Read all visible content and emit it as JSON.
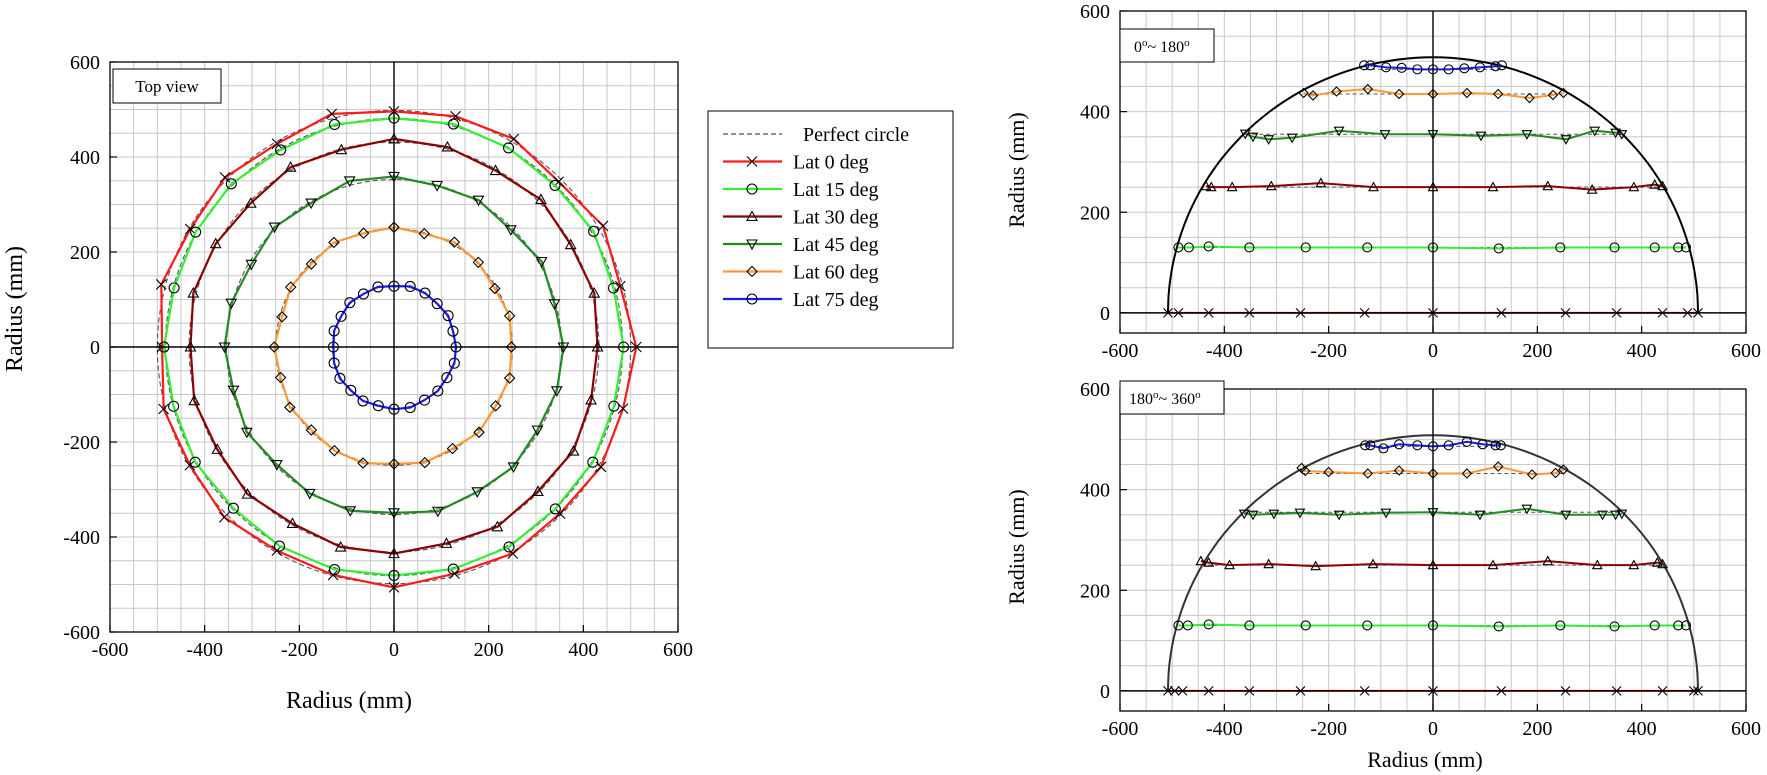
{
  "chart_data": [
    {
      "type": "line",
      "panel": "top-view",
      "title": "",
      "annotation": "Top view",
      "xlabel": "Radius (mm)",
      "ylabel": "Radius (mm)",
      "xlim": [
        -600,
        600
      ],
      "ylim": [
        -600,
        600
      ],
      "ticks": [
        -600,
        -400,
        -200,
        0,
        200,
        400,
        600
      ],
      "grid": true,
      "legend_position": "right",
      "reference": {
        "name": "Perfect circle",
        "style": "dashed",
        "color": "#555555"
      },
      "series": [
        {
          "name": "Lat 0 deg",
          "color": "#ff1a1a",
          "marker": "x",
          "radius": 500,
          "ref_radius": 500,
          "points": 24,
          "deviations": [
            12,
            -5,
            10,
            -8,
            6,
            3,
            -4,
            8,
            -6,
            5,
            -3,
            9,
            -10,
            4,
            -2,
            7,
            -5,
            -3,
            6,
            -6,
            2,
            -4,
            5,
            1
          ]
        },
        {
          "name": "Lat 15 deg",
          "color": "#33ee33",
          "marker": "circle",
          "radius": 483,
          "ref_radius": 483,
          "points": 24,
          "deviations": [
            2,
            -3,
            4,
            -2,
            1,
            3,
            -1,
            2,
            -4,
            3,
            1,
            -2,
            3,
            -1,
            2,
            -3,
            1,
            2,
            -2,
            1,
            3,
            -1,
            2,
            -2
          ]
        },
        {
          "name": "Lat 30 deg",
          "color": "#8b0000",
          "marker": "triangle",
          "radius": 433,
          "ref_radius": 433,
          "points": 24,
          "deviations": [
            -3,
            5,
            -2,
            6,
            -4,
            3,
            5,
            -3,
            4,
            -5,
            2,
            6,
            -3,
            4,
            -2,
            5,
            -4,
            3,
            2,
            -5,
            4,
            -3,
            5,
            -2
          ]
        },
        {
          "name": "Lat 45 deg",
          "color": "#228b22",
          "marker": "tri-down",
          "radius": 354,
          "ref_radius": 354,
          "points": 24,
          "deviations": [
            4,
            -3,
            6,
            -5,
            3,
            -2,
            5,
            8,
            -4,
            3,
            -6,
            2,
            4,
            -3,
            5,
            -4,
            2,
            3,
            -5,
            4,
            -2,
            3,
            -4,
            2
          ]
        },
        {
          "name": "Lat 60 deg",
          "color": "#ff9933",
          "marker": "diamond",
          "radius": 250,
          "ref_radius": 250,
          "points": 24,
          "deviations": [
            -2,
            3,
            -4,
            2,
            5,
            -3,
            2,
            -2,
            4,
            -3,
            2,
            -5,
            3,
            -2,
            4,
            -3,
            2,
            3,
            -4,
            2,
            -3,
            4,
            -2,
            3
          ]
        },
        {
          "name": "Lat 75 deg",
          "color": "#1a1aee",
          "marker": "circle",
          "radius": 130,
          "ref_radius": 130,
          "points": 24,
          "deviations": [
            1,
            -1,
            2,
            -1,
            1,
            2,
            -2,
            1,
            -1,
            2,
            -1,
            1,
            -2,
            1,
            2,
            -1,
            1,
            -2,
            1,
            2,
            -1,
            1,
            -1,
            2
          ]
        }
      ]
    },
    {
      "type": "line",
      "panel": "side-view-upper",
      "annotation": "0°~ 180°",
      "annotation_parts": {
        "a": "0",
        "b": "o",
        "c": "~ 180",
        "d": "o"
      },
      "xlabel": "",
      "ylabel": "Radius (mm)",
      "xlim": [
        -600,
        600
      ],
      "ylim": [
        -40,
        600
      ],
      "xticks": [
        -600,
        -400,
        -200,
        0,
        200,
        400,
        600
      ],
      "yticks": [
        0,
        200,
        400,
        600
      ],
      "grid": true,
      "sphere_radius": 508,
      "series": [
        {
          "name": "Lat 0 deg",
          "color": "#ff1a1a",
          "marker": "x",
          "x": [
            -508,
            -488,
            -430,
            -352,
            -254,
            -131,
            0,
            131,
            254,
            352,
            440,
            488,
            508
          ],
          "y": [
            0,
            0,
            0,
            0,
            0,
            0,
            0,
            0,
            0,
            0,
            0,
            0,
            0
          ]
        },
        {
          "name": "Lat 15 deg",
          "color": "#33ee33",
          "marker": "circle",
          "x": [
            -488,
            -468,
            -430,
            -352,
            -244,
            -126,
            0,
            126,
            244,
            348,
            425,
            470,
            485
          ],
          "y": [
            130,
            130,
            132,
            130,
            130,
            130,
            130,
            128,
            130,
            130,
            130,
            130,
            130
          ]
        },
        {
          "name": "Lat 30 deg",
          "color": "#8b0000",
          "marker": "triangle",
          "x": [
            -435,
            -425,
            -385,
            -310,
            -215,
            -114,
            0,
            115,
            220,
            305,
            385,
            425,
            440
          ],
          "y": [
            252,
            250,
            250,
            252,
            258,
            250,
            250,
            250,
            252,
            245,
            250,
            255,
            252
          ]
        },
        {
          "name": "Lat 45 deg",
          "color": "#228b22",
          "marker": "tri-down",
          "x": [
            -360,
            -345,
            -315,
            -270,
            -180,
            -92,
            0,
            92,
            180,
            255,
            310,
            350,
            362
          ],
          "y": [
            356,
            350,
            345,
            348,
            362,
            355,
            355,
            352,
            355,
            345,
            362,
            358,
            355
          ]
        },
        {
          "name": "Lat 60 deg",
          "color": "#ff9933",
          "marker": "diamond",
          "x": [
            -248,
            -230,
            -185,
            -125,
            -65,
            0,
            65,
            125,
            185,
            230,
            250
          ],
          "y": [
            437,
            432,
            440,
            445,
            435,
            435,
            437,
            435,
            427,
            433,
            437
          ]
        },
        {
          "name": "Lat 75 deg",
          "color": "#1a1aee",
          "marker": "circle",
          "x": [
            -132,
            -120,
            -90,
            -60,
            -30,
            0,
            30,
            60,
            90,
            120,
            132
          ],
          "y": [
            492,
            492,
            488,
            487,
            484,
            484,
            484,
            486,
            488,
            490,
            492
          ]
        }
      ]
    },
    {
      "type": "line",
      "panel": "side-view-lower",
      "annotation": "180°~ 360°",
      "annotation_parts": {
        "a": "180",
        "b": "o",
        "c": "~ 360",
        "d": "o"
      },
      "xlabel": "Radius (mm)",
      "ylabel": "Radius (mm)",
      "xlim": [
        -600,
        600
      ],
      "ylim": [
        -40,
        600
      ],
      "xticks": [
        -600,
        -400,
        -200,
        0,
        200,
        400,
        600
      ],
      "yticks": [
        0,
        200,
        400,
        600
      ],
      "grid": true,
      "sphere_radius": 508,
      "series": [
        {
          "name": "Lat 0 deg",
          "color": "#ff1a1a",
          "marker": "x",
          "x": [
            -508,
            -495,
            -480,
            -430,
            -352,
            -254,
            -131,
            0,
            131,
            254,
            352,
            440,
            500,
            508
          ],
          "y": [
            0,
            0,
            0,
            0,
            0,
            0,
            0,
            0,
            0,
            0,
            0,
            0,
            0,
            0
          ]
        },
        {
          "name": "Lat 15 deg",
          "color": "#33ee33",
          "marker": "circle",
          "x": [
            -488,
            -470,
            -430,
            -352,
            -244,
            -126,
            0,
            126,
            244,
            348,
            425,
            470,
            485
          ],
          "y": [
            130,
            130,
            132,
            130,
            130,
            130,
            130,
            128,
            130,
            128,
            130,
            130,
            130
          ]
        },
        {
          "name": "Lat 30 deg",
          "color": "#8b0000",
          "marker": "triangle",
          "x": [
            -445,
            -430,
            -390,
            -315,
            -225,
            -115,
            0,
            115,
            220,
            315,
            385,
            430,
            440
          ],
          "y": [
            258,
            255,
            250,
            252,
            248,
            252,
            250,
            250,
            258,
            250,
            250,
            255,
            252
          ]
        },
        {
          "name": "Lat 45 deg",
          "color": "#228b22",
          "marker": "tri-down",
          "x": [
            -362,
            -345,
            -305,
            -255,
            -180,
            -90,
            0,
            90,
            180,
            255,
            325,
            350,
            362
          ],
          "y": [
            352,
            350,
            352,
            354,
            350,
            354,
            355,
            350,
            362,
            350,
            350,
            350,
            352
          ]
        },
        {
          "name": "Lat 60 deg",
          "color": "#ff9933",
          "marker": "diamond",
          "x": [
            -252,
            -245,
            -200,
            -125,
            -65,
            0,
            65,
            125,
            190,
            235,
            250
          ],
          "y": [
            443,
            437,
            435,
            432,
            438,
            432,
            432,
            446,
            430,
            433,
            440
          ]
        },
        {
          "name": "Lat 75 deg",
          "color": "#1a1aee",
          "marker": "circle",
          "x": [
            -130,
            -120,
            -95,
            -65,
            -30,
            0,
            30,
            65,
            95,
            120,
            130
          ],
          "y": [
            488,
            488,
            482,
            490,
            488,
            486,
            488,
            495,
            490,
            488,
            488
          ]
        }
      ]
    }
  ],
  "legend": {
    "entries": [
      {
        "label": "Perfect circle",
        "color": "#555555",
        "marker": "none",
        "dashed": true
      },
      {
        "label": "Lat 0 deg",
        "color": "#ff1a1a",
        "marker": "x"
      },
      {
        "label": "Lat 15 deg",
        "color": "#33ee33",
        "marker": "circle"
      },
      {
        "label": "Lat 30 deg",
        "color": "#8b0000",
        "marker": "triangle"
      },
      {
        "label": "Lat 45 deg",
        "color": "#228b22",
        "marker": "tri-down"
      },
      {
        "label": "Lat 60 deg",
        "color": "#ff9933",
        "marker": "diamond"
      },
      {
        "label": "Lat 75 deg",
        "color": "#1a1aee",
        "marker": "circle"
      }
    ]
  }
}
